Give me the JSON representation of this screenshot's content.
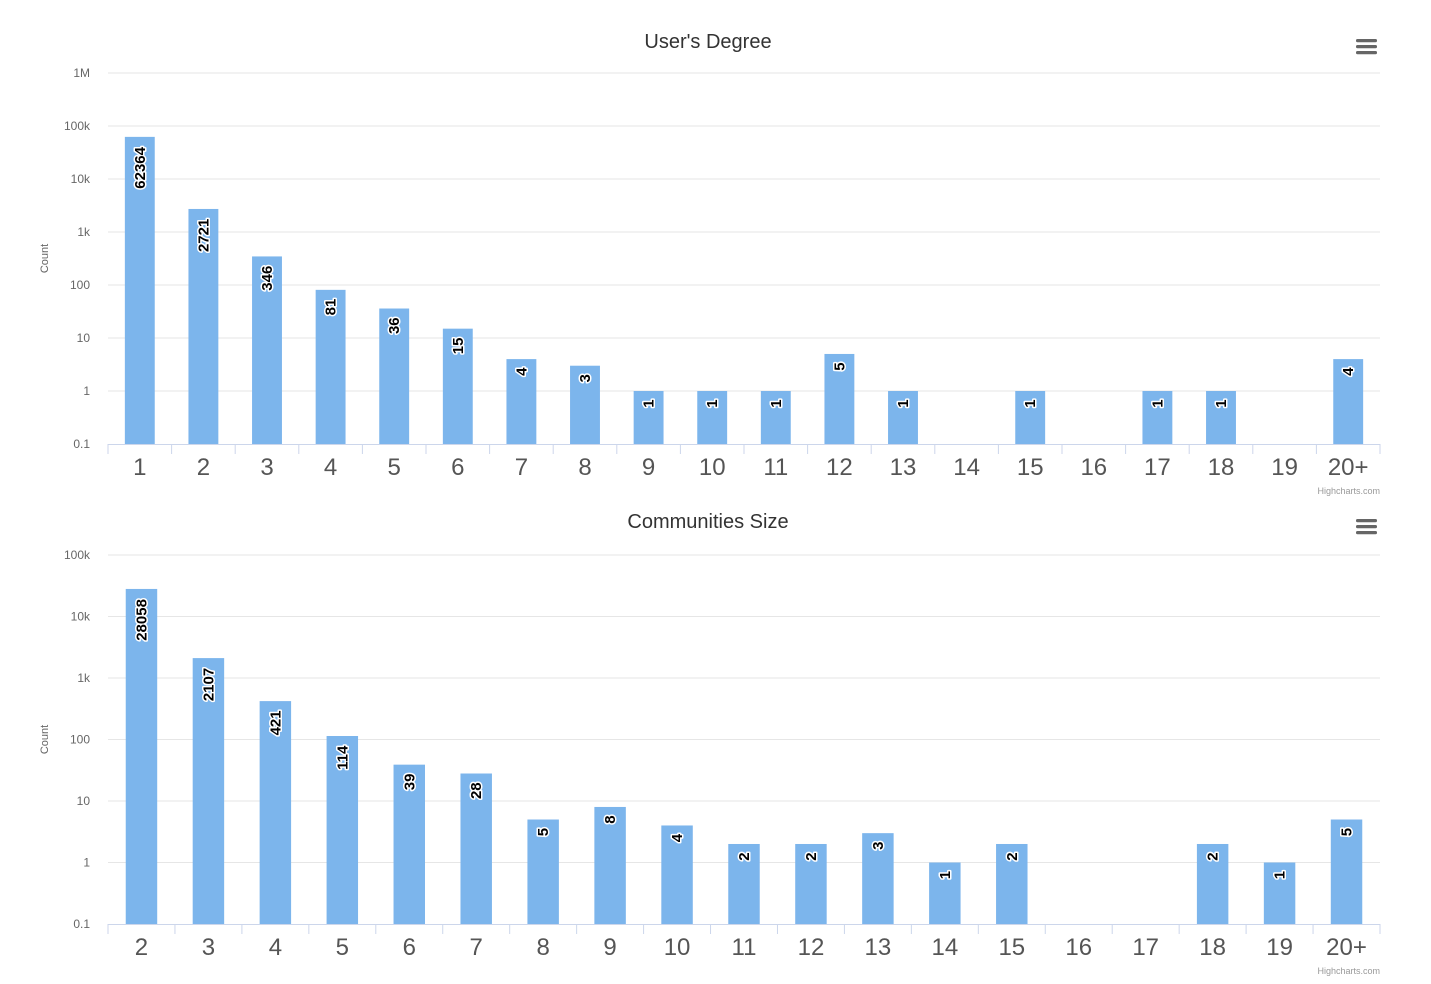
{
  "chart_data": [
    {
      "type": "bar",
      "title": "User's Degree",
      "ylabel": "Count",
      "xlabel": "",
      "scale": "log",
      "ylim": [
        0.1,
        1000000
      ],
      "y_ticks": [
        {
          "value": 0.1,
          "label": "0.1"
        },
        {
          "value": 1,
          "label": "1"
        },
        {
          "value": 10,
          "label": "10"
        },
        {
          "value": 100,
          "label": "100"
        },
        {
          "value": 1000,
          "label": "1k"
        },
        {
          "value": 10000,
          "label": "10k"
        },
        {
          "value": 100000,
          "label": "100k"
        },
        {
          "value": 1000000,
          "label": "1M"
        }
      ],
      "categories": [
        "1",
        "2",
        "3",
        "4",
        "5",
        "6",
        "7",
        "8",
        "9",
        "10",
        "11",
        "12",
        "13",
        "14",
        "15",
        "16",
        "17",
        "18",
        "19",
        "20+"
      ],
      "values": [
        62364,
        2721,
        346,
        81,
        36,
        15,
        4,
        3,
        1,
        1,
        1,
        5,
        1,
        null,
        1,
        null,
        1,
        1,
        null,
        4
      ],
      "bar_color": "#7cb5ec",
      "grid": true,
      "credits": "Highcharts.com"
    },
    {
      "type": "bar",
      "title": "Communities Size",
      "ylabel": "Count",
      "xlabel": "",
      "scale": "log",
      "ylim": [
        0.1,
        100000
      ],
      "y_ticks": [
        {
          "value": 0.1,
          "label": "0.1"
        },
        {
          "value": 1,
          "label": "1"
        },
        {
          "value": 10,
          "label": "10"
        },
        {
          "value": 100,
          "label": "100"
        },
        {
          "value": 1000,
          "label": "1k"
        },
        {
          "value": 10000,
          "label": "10k"
        },
        {
          "value": 100000,
          "label": "100k"
        }
      ],
      "categories": [
        "2",
        "3",
        "4",
        "5",
        "6",
        "7",
        "8",
        "9",
        "10",
        "11",
        "12",
        "13",
        "14",
        "15",
        "16",
        "17",
        "18",
        "19",
        "20+"
      ],
      "values": [
        28058,
        2107,
        421,
        114,
        39,
        28,
        5,
        8,
        4,
        2,
        2,
        3,
        1,
        2,
        null,
        null,
        2,
        1,
        5
      ],
      "bar_color": "#7cb5ec",
      "grid": true,
      "credits": "Highcharts.com"
    }
  ]
}
